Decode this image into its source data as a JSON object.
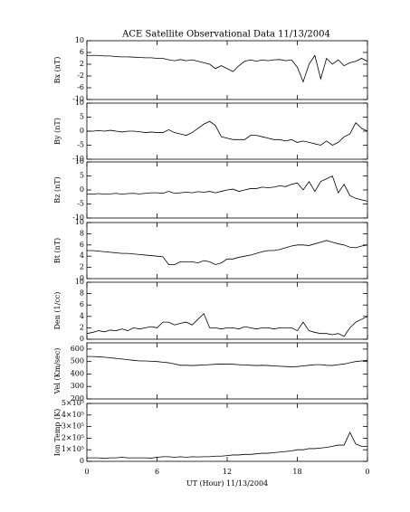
{
  "chart_data": [
    {
      "type": "line",
      "title": "ACE Satellite Observational Data   11/13/2004",
      "y_label": "Bx (nT)",
      "x": [
        0,
        0.5,
        1,
        1.5,
        2,
        2.5,
        3,
        3.5,
        4,
        4.5,
        5,
        5.5,
        6,
        6.5,
        7,
        7.5,
        8,
        8.5,
        9,
        9.5,
        10,
        10.5,
        11,
        11.5,
        12,
        12.5,
        13,
        13.5,
        14,
        14.5,
        15,
        15.5,
        16,
        16.5,
        17,
        17.5,
        18,
        18.5,
        19,
        19.5,
        20,
        20.5,
        21,
        21.5,
        22,
        22.5,
        23,
        23.5,
        24
      ],
      "values": [
        5,
        5,
        5,
        4.8,
        4.8,
        4.6,
        4.5,
        4.5,
        4.4,
        4.3,
        4.2,
        4.2,
        4,
        4,
        3.5,
        3.2,
        3.6,
        3.2,
        3.5,
        3,
        2.5,
        2,
        0.5,
        1.5,
        0.5,
        -0.5,
        1.5,
        3,
        3.5,
        3,
        3.5,
        3.2,
        3.5,
        3.6,
        3.2,
        3.5,
        1,
        -4,
        2,
        5,
        -3,
        4,
        2,
        3.5,
        1.5,
        2.5,
        3,
        4,
        3
      ],
      "color": "#000000",
      "xlim": [
        0,
        24
      ],
      "ylim": [
        -10,
        10
      ],
      "yticks": [
        -10,
        -6,
        -2,
        2,
        6,
        10
      ]
    },
    {
      "type": "line",
      "y_label": "By (nT)",
      "x": [
        0,
        0.5,
        1,
        1.5,
        2,
        2.5,
        3,
        3.5,
        4,
        4.5,
        5,
        5.5,
        6,
        6.5,
        7,
        7.5,
        8,
        8.5,
        9,
        9.5,
        10,
        10.5,
        11,
        11.5,
        12,
        12.5,
        13,
        13.5,
        14,
        14.5,
        15,
        15.5,
        16,
        16.5,
        17,
        17.5,
        18,
        18.5,
        19,
        19.5,
        20,
        20.5,
        21,
        21.5,
        22,
        22.5,
        23,
        23.5,
        24
      ],
      "values": [
        0,
        0,
        0.2,
        0,
        0.3,
        0,
        -0.3,
        0,
        0,
        -0.2,
        -0.5,
        -0.3,
        -0.5,
        -0.5,
        0.5,
        -0.5,
        -1,
        -1.5,
        -0.5,
        1,
        2.5,
        3.5,
        2,
        -2,
        -2.5,
        -3,
        -3,
        -3,
        -1.5,
        -1.5,
        -2,
        -2.5,
        -3,
        -3,
        -3.5,
        -3,
        -4,
        -3.5,
        -4,
        -4.5,
        -5,
        -3.5,
        -5,
        -4,
        -2,
        -1,
        3,
        1,
        0
      ],
      "color": "#000000",
      "xlim": [
        0,
        24
      ],
      "ylim": [
        -10,
        10
      ],
      "yticks": [
        -10,
        -5,
        0,
        5,
        10
      ]
    },
    {
      "type": "line",
      "y_label": "Bz (nT)",
      "x": [
        0,
        0.5,
        1,
        1.5,
        2,
        2.5,
        3,
        3.5,
        4,
        4.5,
        5,
        5.5,
        6,
        6.5,
        7,
        7.5,
        8,
        8.5,
        9,
        9.5,
        10,
        10.5,
        11,
        11.5,
        12,
        12.5,
        13,
        13.5,
        14,
        14.5,
        15,
        15.5,
        16,
        16.5,
        17,
        17.5,
        18,
        18.5,
        19,
        19.5,
        20,
        20.5,
        21,
        21.5,
        22,
        22.5,
        23,
        23.5,
        24
      ],
      "values": [
        -1.5,
        -1.5,
        -1.3,
        -1.5,
        -1.4,
        -1.2,
        -1.5,
        -1.3,
        -1.2,
        -1.4,
        -1.2,
        -1,
        -1,
        -1.2,
        -0.5,
        -1.2,
        -1,
        -0.8,
        -1,
        -0.6,
        -0.8,
        -0.5,
        -1,
        -0.5,
        0,
        0.3,
        -0.5,
        0,
        0.5,
        0.5,
        1,
        0.8,
        1,
        1.5,
        1.2,
        2,
        2.5,
        0,
        3,
        -0.5,
        3,
        4,
        5,
        -1,
        2,
        -2,
        -3,
        -3.5,
        -4
      ],
      "color": "#000000",
      "xlim": [
        0,
        24
      ],
      "ylim": [
        -10,
        10
      ],
      "yticks": [
        -10,
        -5,
        0,
        5,
        10
      ]
    },
    {
      "type": "line",
      "y_label": "Bt (nT)",
      "x": [
        0,
        0.5,
        1,
        1.5,
        2,
        2.5,
        3,
        3.5,
        4,
        4.5,
        5,
        5.5,
        6,
        6.5,
        7,
        7.5,
        8,
        8.5,
        9,
        9.5,
        10,
        10.5,
        11,
        11.5,
        12,
        12.5,
        13,
        13.5,
        14,
        14.5,
        15,
        15.5,
        16,
        16.5,
        17,
        17.5,
        18,
        18.5,
        19,
        19.5,
        20,
        20.5,
        21,
        21.5,
        22,
        22.5,
        23,
        23.5,
        24
      ],
      "values": [
        5,
        5,
        4.9,
        4.8,
        4.7,
        4.6,
        4.5,
        4.5,
        4.4,
        4.3,
        4.2,
        4.1,
        4,
        3.9,
        2.5,
        2.5,
        3,
        3,
        3,
        2.8,
        3.2,
        3,
        2.5,
        2.8,
        3.5,
        3.5,
        3.8,
        4,
        4.2,
        4.5,
        4.8,
        5,
        5,
        5.2,
        5.5,
        5.8,
        6,
        6,
        5.9,
        6.2,
        6.5,
        6.8,
        6.5,
        6.2,
        6,
        5.6,
        5.5,
        5.8,
        6
      ],
      "color": "#000000",
      "xlim": [
        0,
        24
      ],
      "ylim": [
        0,
        10
      ],
      "yticks": [
        0,
        2,
        4,
        6,
        8,
        10
      ]
    },
    {
      "type": "line",
      "y_label": "Den (1/cc)",
      "x": [
        0,
        0.5,
        1,
        1.5,
        2,
        2.5,
        3,
        3.5,
        4,
        4.5,
        5,
        5.5,
        6,
        6.5,
        7,
        7.5,
        8,
        8.5,
        9,
        9.5,
        10,
        10.5,
        11,
        11.5,
        12,
        12.5,
        13,
        13.5,
        14,
        14.5,
        15,
        15.5,
        16,
        16.5,
        17,
        17.5,
        18,
        18.5,
        19,
        19.5,
        20,
        20.5,
        21,
        21.5,
        22,
        22.5,
        23,
        23.5,
        24
      ],
      "values": [
        1,
        1.2,
        1.5,
        1.3,
        1.6,
        1.5,
        1.8,
        1.5,
        2,
        1.8,
        2,
        2.2,
        2,
        3,
        3,
        2.5,
        2.8,
        3,
        2.5,
        3.5,
        4.5,
        2,
        2,
        1.8,
        2,
        2,
        1.8,
        2.2,
        2,
        1.8,
        2,
        2,
        1.8,
        2,
        2,
        2,
        1.5,
        3,
        1.5,
        1.2,
        1,
        1,
        0.8,
        1,
        0.5,
        2,
        3,
        3.5,
        4
      ],
      "color": "#000000",
      "xlim": [
        0,
        24
      ],
      "ylim": [
        0,
        10
      ],
      "yticks": [
        0,
        2,
        4,
        6,
        8,
        10
      ]
    },
    {
      "type": "line",
      "y_label": "Vel (Km/sec)",
      "x": [
        0,
        0.5,
        1,
        1.5,
        2,
        2.5,
        3,
        3.5,
        4,
        4.5,
        5,
        5.5,
        6,
        6.5,
        7,
        7.5,
        8,
        8.5,
        9,
        9.5,
        10,
        10.5,
        11,
        11.5,
        12,
        12.5,
        13,
        13.5,
        14,
        14.5,
        15,
        15.5,
        16,
        16.5,
        17,
        17.5,
        18,
        18.5,
        19,
        19.5,
        20,
        20.5,
        21,
        21.5,
        22,
        22.5,
        23,
        23.5,
        24
      ],
      "values": [
        540,
        540,
        538,
        535,
        530,
        525,
        520,
        515,
        510,
        505,
        505,
        502,
        500,
        495,
        490,
        480,
        470,
        470,
        468,
        470,
        472,
        475,
        478,
        480,
        480,
        478,
        475,
        472,
        470,
        468,
        470,
        468,
        465,
        462,
        460,
        458,
        460,
        465,
        470,
        475,
        475,
        470,
        468,
        475,
        480,
        490,
        500,
        505,
        510
      ],
      "color": "#000000",
      "xlim": [
        0,
        24
      ],
      "ylim": [
        200,
        650
      ],
      "yticks": [
        200,
        300,
        400,
        500,
        600
      ]
    },
    {
      "type": "line",
      "y_label": "Ion Temp (K)",
      "x_label": "UT (Hour)  11/13/2004",
      "x": [
        0,
        0.5,
        1,
        1.5,
        2,
        2.5,
        3,
        3.5,
        4,
        4.5,
        5,
        5.5,
        6,
        6.5,
        7,
        7.5,
        8,
        8.5,
        9,
        9.5,
        10,
        10.5,
        11,
        11.5,
        12,
        12.5,
        13,
        13.5,
        14,
        14.5,
        15,
        15.5,
        16,
        16.5,
        17,
        17.5,
        18,
        18.5,
        19,
        19.5,
        20,
        20.5,
        21,
        21.5,
        22,
        22.5,
        23,
        23.5,
        24
      ],
      "values": [
        30000,
        30000,
        30000,
        25000,
        30000,
        30000,
        35000,
        30000,
        30000,
        30000,
        30000,
        28000,
        35000,
        40000,
        40000,
        35000,
        40000,
        35000,
        40000,
        38000,
        40000,
        40000,
        45000,
        45000,
        50000,
        55000,
        55000,
        60000,
        60000,
        65000,
        70000,
        70000,
        75000,
        80000,
        85000,
        90000,
        100000,
        100000,
        110000,
        110000,
        115000,
        120000,
        130000,
        140000,
        140000,
        250000,
        150000,
        130000,
        130000
      ],
      "color": "#000000",
      "xlim": [
        0,
        24
      ],
      "ylim": [
        0,
        500000
      ],
      "yticks": [
        0,
        {
          "value": 100000,
          "label": "1×10⁵"
        },
        {
          "value": 200000,
          "label": "2×10⁵"
        },
        {
          "value": 300000,
          "label": "3×10⁵"
        },
        {
          "value": 400000,
          "label": "4×10⁵"
        },
        {
          "value": 500000,
          "label": "5×10⁵"
        }
      ],
      "xticks": [
        0,
        6,
        12,
        18,
        {
          "value": 24,
          "label": "0"
        }
      ]
    }
  ]
}
